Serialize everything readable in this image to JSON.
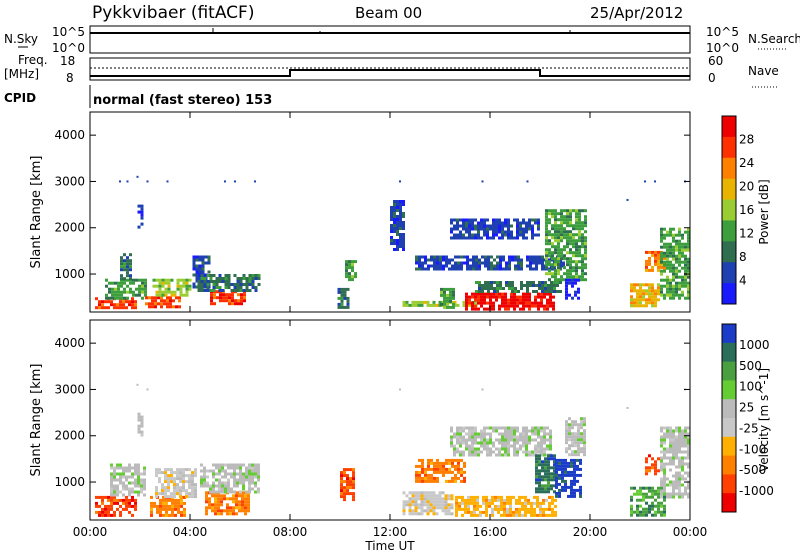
{
  "header": {
    "station": "Pykkvibaer (fitACF)",
    "beam": "Beam 00",
    "date": "25/Apr/2012"
  },
  "sky_panel": {
    "left_label": "N.Sky",
    "left_ticks": [
      "10^5",
      "10^0"
    ],
    "right_ticks": [
      "10^5",
      "10^0"
    ],
    "right_label": "N.Search"
  },
  "freq_panel": {
    "left_label_1": "Freq.",
    "left_label_2": "[MHz]",
    "left_ticks": [
      "18",
      "8"
    ],
    "right_ticks": [
      "60",
      "0"
    ],
    "right_label": "Nave"
  },
  "cpid": {
    "label": "CPID",
    "text": "normal (fast stereo) 153"
  },
  "colors": {
    "power": [
      "#1a1aff",
      "#1e40b0",
      "#2f6e4f",
      "#3c9e3c",
      "#9acd32",
      "#e8b400",
      "#ff7f00",
      "#ff3000",
      "#ee0000"
    ],
    "velocity": [
      "#1a3cc8",
      "#2a6e5a",
      "#4aa040",
      "#66cc33",
      "#bbbbbb",
      "#c8c8c8",
      "#ffb000",
      "#ff7f00",
      "#ff4000",
      "#ee0000"
    ],
    "ground": "#bbbbbb"
  },
  "chart_data": [
    {
      "type": "heatmap",
      "title": "Power",
      "ylabel": "Slant Range [km]",
      "xlabel": "Time UT",
      "xlim": [
        0,
        24
      ],
      "ylim": [
        180,
        4500
      ],
      "y_ticks": [
        "1000",
        "2000",
        "3000",
        "4000"
      ],
      "x_ticks": [
        "00:00",
        "04:00",
        "08:00",
        "12:00",
        "16:00",
        "20:00",
        "00:00"
      ],
      "colorbar_label": "Power [dB]",
      "colorbar_ticks": [
        "4",
        "8",
        "12",
        "16",
        "20",
        "24",
        "28"
      ],
      "regions": [
        {
          "t0": 0.2,
          "t1": 1.8,
          "r0": 300,
          "r1": 500,
          "level": 7
        },
        {
          "t0": 0.6,
          "t1": 2.2,
          "r0": 500,
          "r1": 900,
          "level": 3
        },
        {
          "t0": 1.2,
          "t1": 1.6,
          "r0": 900,
          "r1": 1450,
          "level": 2
        },
        {
          "t0": 2.2,
          "t1": 3.6,
          "r0": 300,
          "r1": 520,
          "level": 7
        },
        {
          "t0": 2.5,
          "t1": 4.0,
          "r0": 520,
          "r1": 900,
          "level": 4
        },
        {
          "t0": 4.1,
          "t1": 4.8,
          "r0": 700,
          "r1": 1400,
          "level": 1
        },
        {
          "t0": 4.8,
          "t1": 6.2,
          "r0": 350,
          "r1": 650,
          "level": 7
        },
        {
          "t0": 4.3,
          "t1": 6.8,
          "r0": 650,
          "r1": 1000,
          "level": 2
        },
        {
          "t0": 1.9,
          "t1": 2.1,
          "r0": 2000,
          "r1": 2500,
          "level": 1
        },
        {
          "t0": 9.9,
          "t1": 10.3,
          "r0": 300,
          "r1": 700,
          "level": 2
        },
        {
          "t0": 10.2,
          "t1": 10.6,
          "r0": 900,
          "r1": 1300,
          "level": 3
        },
        {
          "t0": 12.5,
          "t1": 15.4,
          "r0": 300,
          "r1": 420,
          "level": 4
        },
        {
          "t0": 14.0,
          "t1": 14.6,
          "r0": 300,
          "r1": 700,
          "level": 3
        },
        {
          "t0": 15.0,
          "t1": 18.5,
          "r0": 250,
          "r1": 600,
          "level": 8
        },
        {
          "t0": 15.4,
          "t1": 18.8,
          "r0": 600,
          "r1": 850,
          "level": 2
        },
        {
          "t0": 13.0,
          "t1": 19.0,
          "r0": 1100,
          "r1": 1400,
          "level": 1
        },
        {
          "t0": 14.4,
          "t1": 18.0,
          "r0": 1800,
          "r1": 2200,
          "level": 1
        },
        {
          "t0": 18.2,
          "t1": 19.8,
          "r0": 900,
          "r1": 2400,
          "level": 3
        },
        {
          "t0": 19.0,
          "t1": 19.6,
          "r0": 500,
          "r1": 900,
          "level": 0
        },
        {
          "t0": 21.6,
          "t1": 22.8,
          "r0": 300,
          "r1": 800,
          "level": 5
        },
        {
          "t0": 22.2,
          "t1": 23.0,
          "r0": 1100,
          "r1": 1500,
          "level": 6
        },
        {
          "t0": 22.8,
          "t1": 24.0,
          "r0": 500,
          "r1": 2000,
          "level": 3
        },
        {
          "t0": 12.0,
          "t1": 12.6,
          "r0": 1500,
          "r1": 2600,
          "level": 1
        }
      ],
      "dots": [
        {
          "t": 1.2,
          "r": 3000
        },
        {
          "t": 1.5,
          "r": 3000
        },
        {
          "t": 1.9,
          "r": 3100
        },
        {
          "t": 2.3,
          "r": 3000
        },
        {
          "t": 3.1,
          "r": 3000
        },
        {
          "t": 5.4,
          "r": 3000
        },
        {
          "t": 5.8,
          "r": 3000
        },
        {
          "t": 6.6,
          "r": 3000
        },
        {
          "t": 12.4,
          "r": 3000
        },
        {
          "t": 15.7,
          "r": 3000
        },
        {
          "t": 17.5,
          "r": 3000
        },
        {
          "t": 22.2,
          "r": 3000
        },
        {
          "t": 22.6,
          "r": 3000
        },
        {
          "t": 23.8,
          "r": 3000
        },
        {
          "t": 21.5,
          "r": 2600
        }
      ]
    },
    {
      "type": "heatmap",
      "title": "Velocity",
      "ylabel": "Slant Range [km]",
      "xlabel": "Time UT",
      "xlim": [
        0,
        24
      ],
      "ylim": [
        180,
        4500
      ],
      "y_ticks": [
        "1000",
        "2000",
        "3000",
        "4000"
      ],
      "x_ticks": [
        "00:00",
        "04:00",
        "08:00",
        "12:00",
        "16:00",
        "20:00",
        "00:00"
      ],
      "colorbar_label": "Velocity [m s^-1]",
      "colorbar_ticks": [
        "1000",
        "500",
        "100",
        "25",
        "-25",
        "-100",
        "-500",
        "-1000"
      ],
      "regions": [
        {
          "t0": 0.2,
          "t1": 1.8,
          "r0": 300,
          "r1": 700,
          "level": 8
        },
        {
          "t0": 0.8,
          "t1": 2.2,
          "r0": 700,
          "r1": 1400,
          "level": 4
        },
        {
          "t0": 2.4,
          "t1": 3.8,
          "r0": 300,
          "r1": 700,
          "level": 7
        },
        {
          "t0": 2.6,
          "t1": 4.2,
          "r0": 700,
          "r1": 1300,
          "level": 5
        },
        {
          "t0": 4.6,
          "t1": 6.4,
          "r0": 300,
          "r1": 800,
          "level": 7
        },
        {
          "t0": 4.4,
          "t1": 6.8,
          "r0": 800,
          "r1": 1400,
          "level": 4
        },
        {
          "t0": 1.9,
          "t1": 2.1,
          "r0": 2000,
          "r1": 2500,
          "level": 4
        },
        {
          "t0": 10.0,
          "t1": 10.6,
          "r0": 600,
          "r1": 1300,
          "level": 8
        },
        {
          "t0": 12.5,
          "t1": 14.5,
          "r0": 300,
          "r1": 800,
          "level": 5
        },
        {
          "t0": 14.6,
          "t1": 18.6,
          "r0": 250,
          "r1": 700,
          "level": 6
        },
        {
          "t0": 14.4,
          "t1": 18.4,
          "r0": 1600,
          "r1": 2200,
          "level": 4
        },
        {
          "t0": 13.0,
          "t1": 15.0,
          "r0": 1000,
          "r1": 1500,
          "level": 7
        },
        {
          "t0": 17.8,
          "t1": 18.6,
          "r0": 800,
          "r1": 1600,
          "level": 1
        },
        {
          "t0": 18.6,
          "t1": 19.6,
          "r0": 700,
          "r1": 1500,
          "level": 0
        },
        {
          "t0": 19.0,
          "t1": 19.8,
          "r0": 1600,
          "r1": 2400,
          "level": 4
        },
        {
          "t0": 21.6,
          "t1": 23.0,
          "r0": 300,
          "r1": 900,
          "level": 2
        },
        {
          "t0": 22.8,
          "t1": 24.0,
          "r0": 700,
          "r1": 2200,
          "level": 4
        },
        {
          "t0": 22.2,
          "t1": 22.8,
          "r0": 1200,
          "r1": 1600,
          "level": 8
        }
      ],
      "dots": [
        {
          "t": 1.9,
          "r": 3100
        },
        {
          "t": 2.3,
          "r": 3000
        },
        {
          "t": 12.4,
          "r": 3000
        },
        {
          "t": 15.7,
          "r": 3000
        },
        {
          "t": 23.8,
          "r": 3000
        },
        {
          "t": 21.5,
          "r": 2600
        }
      ]
    }
  ]
}
